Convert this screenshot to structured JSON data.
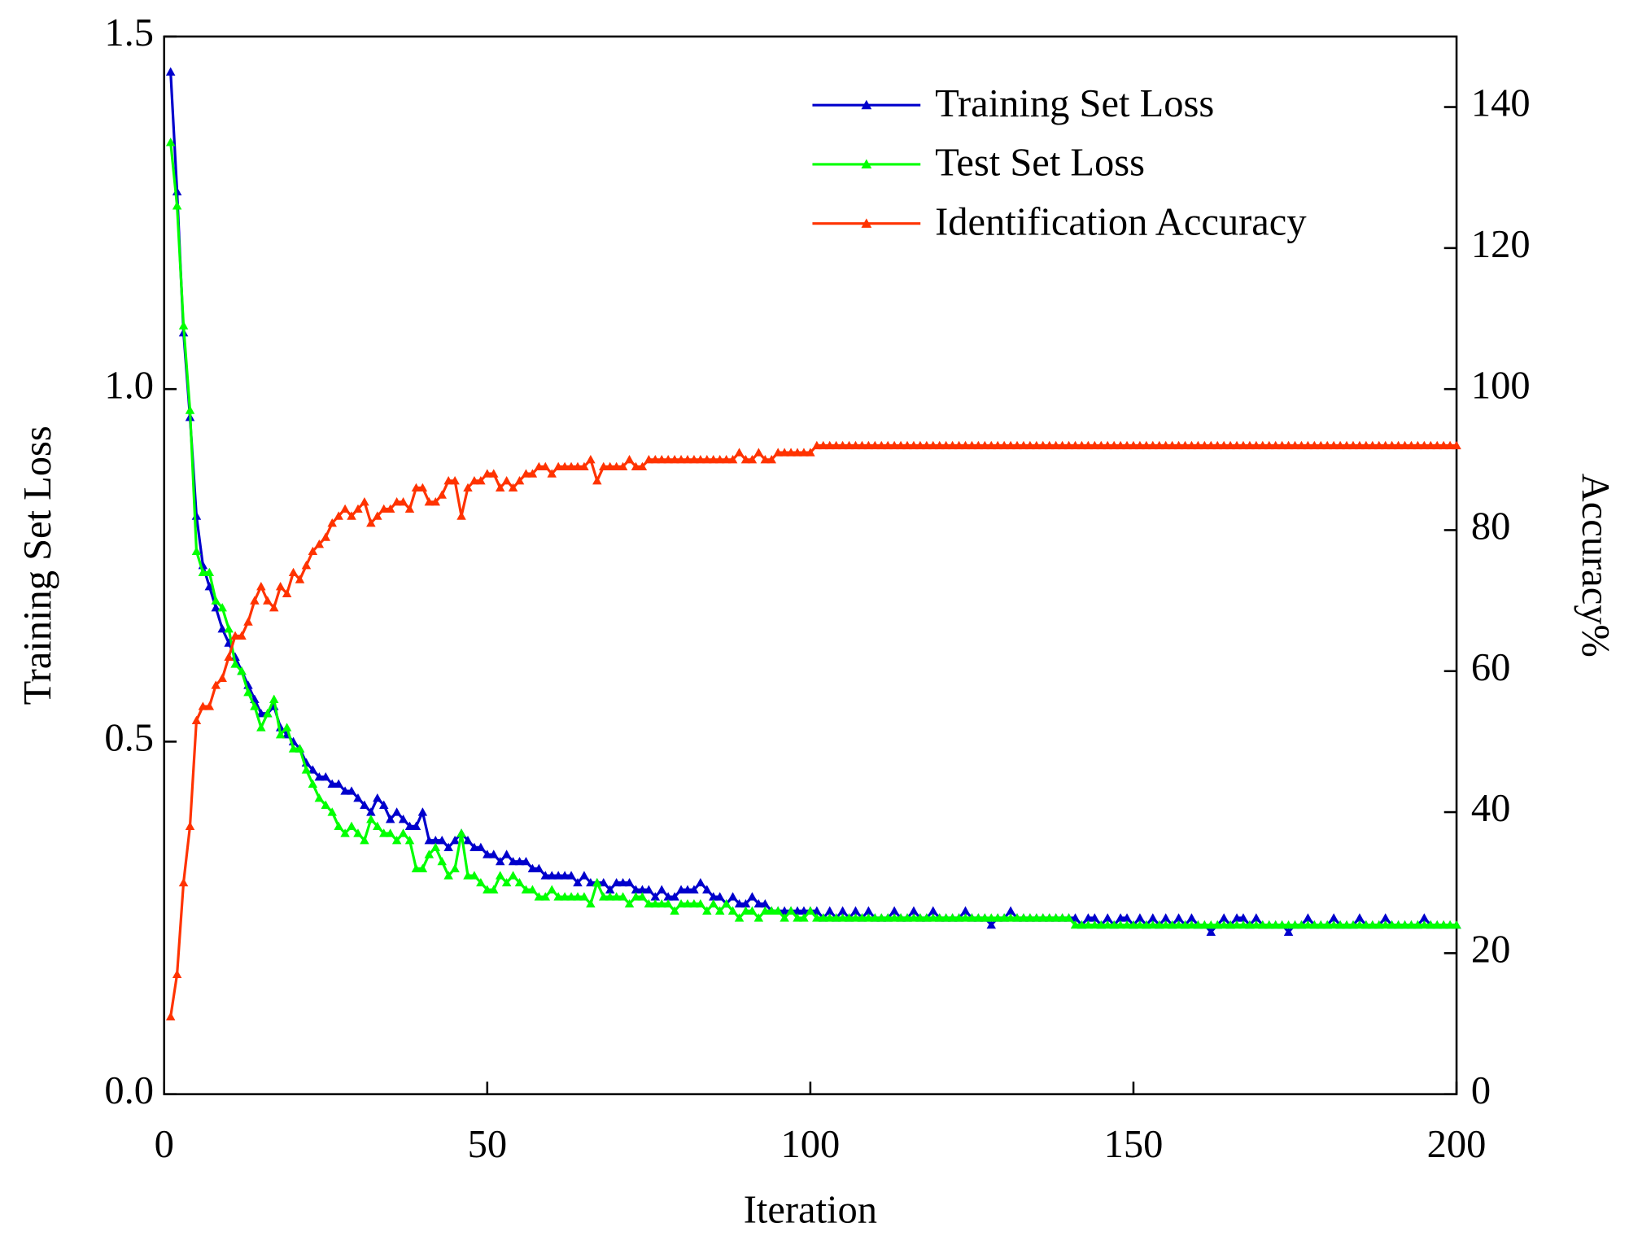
{
  "chart_data": {
    "type": "line",
    "xlabel": "Iteration",
    "ylabel": "Training Set Loss",
    "y2label": "Accuracy%",
    "xlim": [
      0,
      200
    ],
    "xticks": [
      0,
      50,
      100,
      150,
      200
    ],
    "ylim": [
      0,
      1.5
    ],
    "yticks": [
      {
        "value": 0,
        "label": "0.0"
      },
      {
        "value": 0.5,
        "label": "0.5"
      },
      {
        "value": 1,
        "label": "1.0"
      },
      {
        "value": 1.5,
        "label": "1.5"
      }
    ],
    "y2lim": [
      0,
      150
    ],
    "y2ticks": [
      0,
      20,
      40,
      60,
      80,
      100,
      120,
      140
    ],
    "legend": "upper right",
    "marker": "triangle",
    "x": [
      1,
      2,
      3,
      4,
      5,
      6,
      7,
      8,
      9,
      10,
      11,
      12,
      13,
      14,
      15,
      16,
      17,
      18,
      19,
      20,
      21,
      22,
      23,
      24,
      25,
      26,
      27,
      28,
      29,
      30,
      31,
      32,
      33,
      34,
      35,
      36,
      37,
      38,
      39,
      40,
      41,
      42,
      43,
      44,
      45,
      46,
      47,
      48,
      49,
      50,
      51,
      52,
      53,
      54,
      55,
      56,
      57,
      58,
      59,
      60,
      61,
      62,
      63,
      64,
      65,
      66,
      67,
      68,
      69,
      70,
      71,
      72,
      73,
      74,
      75,
      76,
      77,
      78,
      79,
      80,
      81,
      82,
      83,
      84,
      85,
      86,
      87,
      88,
      89,
      90,
      91,
      92,
      93,
      94,
      95,
      96,
      97,
      98,
      99,
      100,
      101,
      102,
      103,
      104,
      105,
      106,
      107,
      108,
      109,
      110,
      111,
      112,
      113,
      114,
      115,
      116,
      117,
      118,
      119,
      120,
      121,
      122,
      123,
      124,
      125,
      126,
      127,
      128,
      129,
      130,
      131,
      132,
      133,
      134,
      135,
      136,
      137,
      138,
      139,
      140,
      141,
      142,
      143,
      144,
      145,
      146,
      147,
      148,
      149,
      150,
      151,
      152,
      153,
      154,
      155,
      156,
      157,
      158,
      159,
      160,
      161,
      162,
      163,
      164,
      165,
      166,
      167,
      168,
      169,
      170,
      171,
      172,
      173,
      174,
      175,
      176,
      177,
      178,
      179,
      180,
      181,
      182,
      183,
      184,
      185,
      186,
      187,
      188,
      189,
      190,
      191,
      192,
      193,
      194,
      195,
      196,
      197,
      198,
      199,
      200
    ],
    "series": [
      {
        "name": "Training Set Loss",
        "color": "#0000cc",
        "axis": "y",
        "values": [
          1.45,
          1.28,
          1.08,
          0.96,
          0.82,
          0.75,
          0.72,
          0.69,
          0.66,
          0.64,
          0.62,
          0.6,
          0.58,
          0.56,
          0.54,
          0.54,
          0.55,
          0.52,
          0.51,
          0.5,
          0.49,
          0.47,
          0.46,
          0.45,
          0.45,
          0.44,
          0.44,
          0.43,
          0.43,
          0.42,
          0.41,
          0.4,
          0.42,
          0.41,
          0.39,
          0.4,
          0.39,
          0.38,
          0.38,
          0.4,
          0.36,
          0.36,
          0.36,
          0.35,
          0.36,
          0.37,
          0.36,
          0.35,
          0.35,
          0.34,
          0.34,
          0.33,
          0.34,
          0.33,
          0.33,
          0.33,
          0.32,
          0.32,
          0.31,
          0.31,
          0.31,
          0.31,
          0.31,
          0.3,
          0.31,
          0.3,
          0.3,
          0.3,
          0.29,
          0.3,
          0.3,
          0.3,
          0.29,
          0.29,
          0.29,
          0.28,
          0.29,
          0.28,
          0.28,
          0.29,
          0.29,
          0.29,
          0.3,
          0.29,
          0.28,
          0.28,
          0.27,
          0.28,
          0.27,
          0.27,
          0.28,
          0.27,
          0.27,
          0.26,
          0.26,
          0.26,
          0.26,
          0.26,
          0.26,
          0.26,
          0.26,
          0.25,
          0.26,
          0.25,
          0.26,
          0.25,
          0.26,
          0.25,
          0.26,
          0.25,
          0.25,
          0.25,
          0.26,
          0.25,
          0.25,
          0.26,
          0.25,
          0.25,
          0.26,
          0.25,
          0.25,
          0.25,
          0.25,
          0.26,
          0.25,
          0.25,
          0.25,
          0.24,
          0.25,
          0.25,
          0.26,
          0.25,
          0.25,
          0.25,
          0.25,
          0.25,
          0.25,
          0.25,
          0.25,
          0.25,
          0.25,
          0.24,
          0.25,
          0.25,
          0.24,
          0.25,
          0.24,
          0.25,
          0.25,
          0.24,
          0.25,
          0.24,
          0.25,
          0.24,
          0.25,
          0.24,
          0.25,
          0.24,
          0.25,
          0.24,
          0.24,
          0.23,
          0.24,
          0.25,
          0.24,
          0.25,
          0.25,
          0.24,
          0.25,
          0.24,
          0.24,
          0.24,
          0.24,
          0.23,
          0.24,
          0.24,
          0.25,
          0.24,
          0.24,
          0.24,
          0.25,
          0.24,
          0.24,
          0.24,
          0.25,
          0.24,
          0.24,
          0.24,
          0.25,
          0.24,
          0.24,
          0.24,
          0.24,
          0.24,
          0.25,
          0.24,
          0.24,
          0.24,
          0.24,
          0.24
        ]
      },
      {
        "name": "Test Set Loss",
        "color": "#00ff00",
        "axis": "y",
        "values": [
          1.35,
          1.26,
          1.09,
          0.97,
          0.77,
          0.74,
          0.74,
          0.7,
          0.69,
          0.66,
          0.61,
          0.6,
          0.57,
          0.55,
          0.52,
          0.54,
          0.56,
          0.51,
          0.52,
          0.49,
          0.49,
          0.46,
          0.44,
          0.42,
          0.41,
          0.4,
          0.38,
          0.37,
          0.38,
          0.37,
          0.36,
          0.39,
          0.38,
          0.37,
          0.37,
          0.36,
          0.37,
          0.36,
          0.32,
          0.32,
          0.34,
          0.35,
          0.33,
          0.31,
          0.32,
          0.37,
          0.31,
          0.31,
          0.3,
          0.29,
          0.29,
          0.31,
          0.3,
          0.31,
          0.3,
          0.29,
          0.29,
          0.28,
          0.28,
          0.29,
          0.28,
          0.28,
          0.28,
          0.28,
          0.28,
          0.27,
          0.3,
          0.28,
          0.28,
          0.28,
          0.28,
          0.27,
          0.28,
          0.28,
          0.27,
          0.27,
          0.27,
          0.27,
          0.26,
          0.27,
          0.27,
          0.27,
          0.27,
          0.26,
          0.27,
          0.26,
          0.27,
          0.26,
          0.25,
          0.26,
          0.26,
          0.25,
          0.26,
          0.26,
          0.26,
          0.25,
          0.26,
          0.25,
          0.25,
          0.26,
          0.25,
          0.25,
          0.25,
          0.25,
          0.25,
          0.25,
          0.25,
          0.25,
          0.25,
          0.25,
          0.25,
          0.25,
          0.25,
          0.25,
          0.25,
          0.25,
          0.25,
          0.25,
          0.25,
          0.25,
          0.25,
          0.25,
          0.25,
          0.25,
          0.25,
          0.25,
          0.25,
          0.25,
          0.25,
          0.25,
          0.25,
          0.25,
          0.25,
          0.25,
          0.25,
          0.25,
          0.25,
          0.25,
          0.25,
          0.25,
          0.24,
          0.24,
          0.24,
          0.24,
          0.24,
          0.24,
          0.24,
          0.24,
          0.24,
          0.24,
          0.24,
          0.24,
          0.24,
          0.24,
          0.24,
          0.24,
          0.24,
          0.24,
          0.24,
          0.24,
          0.24,
          0.24,
          0.24,
          0.24,
          0.24,
          0.24,
          0.24,
          0.24,
          0.24,
          0.24,
          0.24,
          0.24,
          0.24,
          0.24,
          0.24,
          0.24,
          0.24,
          0.24,
          0.24,
          0.24,
          0.24,
          0.24,
          0.24,
          0.24,
          0.24,
          0.24,
          0.24,
          0.24,
          0.24,
          0.24,
          0.24,
          0.24,
          0.24,
          0.24,
          0.24,
          0.24,
          0.24,
          0.24,
          0.24,
          0.24
        ]
      },
      {
        "name": "Identification Accuracy",
        "color": "#ff3300",
        "axis": "y2",
        "values": [
          11,
          17,
          30,
          38,
          53,
          55,
          55,
          58,
          59,
          62,
          65,
          65,
          67,
          70,
          72,
          70,
          69,
          72,
          71,
          74,
          73,
          75,
          77,
          78,
          79,
          81,
          82,
          83,
          82,
          83,
          84,
          81,
          82,
          83,
          83,
          84,
          84,
          83,
          86,
          86,
          84,
          84,
          85,
          87,
          87,
          82,
          86,
          87,
          87,
          88,
          88,
          86,
          87,
          86,
          87,
          88,
          88,
          89,
          89,
          88,
          89,
          89,
          89,
          89,
          89,
          90,
          87,
          89,
          89,
          89,
          89,
          90,
          89,
          89,
          90,
          90,
          90,
          90,
          90,
          90,
          90,
          90,
          90,
          90,
          90,
          90,
          90,
          90,
          91,
          90,
          90,
          91,
          90,
          90,
          91,
          91,
          91,
          91,
          91,
          91,
          92,
          92,
          92,
          92,
          92,
          92,
          92,
          92,
          92,
          92,
          92,
          92,
          92,
          92,
          92,
          92,
          92,
          92,
          92,
          92,
          92,
          92,
          92,
          92,
          92,
          92,
          92,
          92,
          92,
          92,
          92,
          92,
          92,
          92,
          92,
          92,
          92,
          92,
          92,
          92,
          92,
          92,
          92,
          92,
          92,
          92,
          92,
          92,
          92,
          92,
          92,
          92,
          92,
          92,
          92,
          92,
          92,
          92,
          92,
          92,
          92,
          92,
          92,
          92,
          92,
          92,
          92,
          92,
          92,
          92,
          92,
          92,
          92,
          92,
          92,
          92,
          92,
          92,
          92,
          92,
          92,
          92,
          92,
          92,
          92,
          92,
          92,
          92,
          92,
          92,
          92,
          92,
          92,
          92,
          92,
          92,
          92,
          92,
          92,
          92
        ]
      }
    ]
  }
}
